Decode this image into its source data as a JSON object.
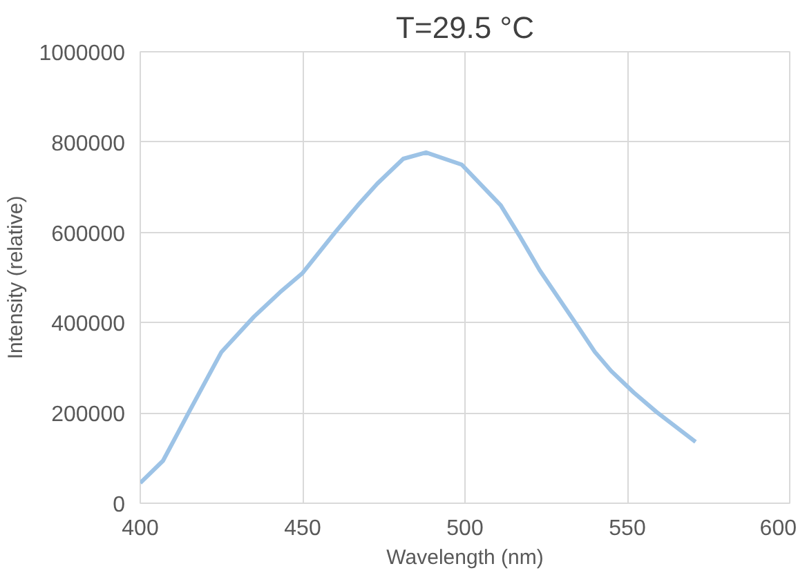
{
  "chart_data": {
    "type": "line",
    "title": "T=29.5 °C",
    "xlabel": "Wavelength (nm)",
    "ylabel": "Intensity (relative)",
    "series": [
      {
        "color": "#9dc3e6",
        "x": [
          400,
          407,
          415,
          421,
          425,
          435,
          443,
          450,
          460,
          467,
          473,
          481,
          488,
          499,
          511,
          517,
          523,
          535,
          540,
          545,
          552,
          559,
          571
        ],
        "values": [
          45000,
          94000,
          202000,
          282000,
          335000,
          413000,
          467000,
          510000,
          600000,
          660000,
          708000,
          763000,
          777000,
          750000,
          660000,
          590000,
          516000,
          389000,
          335000,
          293000,
          245000,
          202000,
          136000
        ]
      }
    ],
    "xlim": [
      400,
      600
    ],
    "xticks": [
      400,
      450,
      500,
      550,
      600
    ],
    "ylim": [
      0,
      1000000
    ],
    "yticks": [
      0,
      200000,
      400000,
      600000,
      800000,
      1000000
    ],
    "grid": true,
    "marker": "none",
    "line_style": "solid"
  }
}
